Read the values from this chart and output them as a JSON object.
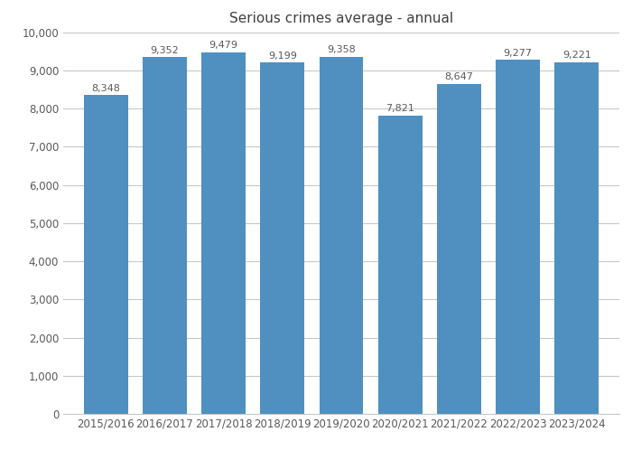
{
  "title": "Serious crimes average - annual",
  "categories": [
    "2015/2016",
    "2016/2017",
    "2017/2018",
    "2018/2019",
    "2019/2020",
    "2020/2021",
    "2021/2022",
    "2022/2023",
    "2023/2024"
  ],
  "values": [
    8348,
    9352,
    9479,
    9199,
    9358,
    7821,
    8647,
    9277,
    9221
  ],
  "bar_color": "#4F90C1",
  "ylim": [
    0,
    10000
  ],
  "yticks": [
    0,
    1000,
    2000,
    3000,
    4000,
    5000,
    6000,
    7000,
    8000,
    9000,
    10000
  ],
  "title_fontsize": 11,
  "label_fontsize": 8.0,
  "tick_fontsize": 8.5,
  "background_color": "#ffffff",
  "grid_color": "#c8c8c8",
  "bar_width": 0.75
}
